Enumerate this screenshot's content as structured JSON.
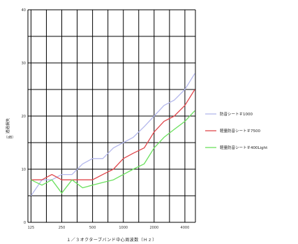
{
  "chart_data": {
    "type": "line",
    "title": "",
    "xlabel": "１／３オクターブバンド中心周波数（Ｈｚ）",
    "ylabel": "透過損失",
    "ylabel_unit": "（dB）",
    "x": [
      125,
      160,
      200,
      250,
      315,
      400,
      500,
      630,
      800,
      1000,
      1250,
      1600,
      2000,
      2500,
      3150,
      4000,
      5000
    ],
    "x_tick_labels": [
      "125",
      "250",
      "500",
      "1000",
      "2000",
      "4000"
    ],
    "ylim": [
      0,
      40
    ],
    "y_ticks": [
      0,
      10,
      20,
      30,
      40
    ],
    "grid": true,
    "legend_position": "right",
    "series": [
      {
        "name": "防音シート＃1000",
        "color": "#b4b8ec",
        "values": [
          5,
          8,
          8,
          9,
          9,
          11,
          12,
          12,
          14,
          15,
          16,
          18,
          20,
          22,
          23,
          25,
          28
        ]
      },
      {
        "name": "軽量防音シート＃7500",
        "color": "#e0474c",
        "values": [
          8,
          8,
          9,
          8,
          8,
          8,
          8,
          9,
          10,
          12,
          13,
          14,
          17,
          19,
          20,
          22,
          25
        ]
      },
      {
        "name": "軽量防音シート＃400Light",
        "color": "#6be05e",
        "values": [
          8,
          7,
          8,
          5.5,
          8,
          6.5,
          7,
          7.5,
          8,
          9,
          10,
          11,
          14,
          16,
          17.5,
          19,
          21
        ]
      }
    ]
  }
}
